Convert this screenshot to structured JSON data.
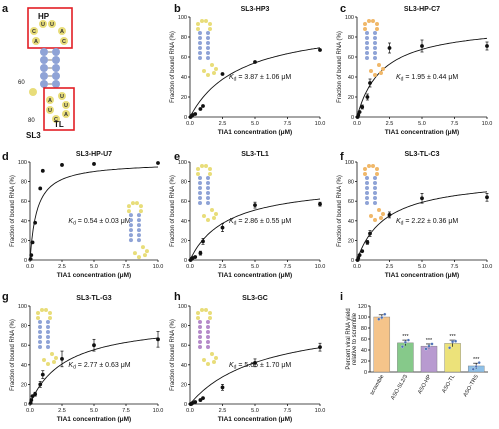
{
  "panel_a": {
    "letter": "a",
    "construct_label": "SL3",
    "hp_label": "HP",
    "tl_label": "TL",
    "pos60": "60",
    "pos80": "80",
    "upper_loop": [
      "C",
      "A",
      "U",
      "A",
      "C",
      "U",
      "A"
    ],
    "lower_loop": [
      "U",
      "U",
      "A",
      "C",
      "U",
      "A"
    ]
  },
  "colors": {
    "stem_blue": "#8fa3d6",
    "loop_yellow": "#e8dd7a",
    "loop_orange": "#f0b86a",
    "stem_purple": "#b58ac9",
    "highlight_red": "#e31e24",
    "bar_scramble": "#f5c48a",
    "bar_sl23": "#86c98a",
    "bar_hp": "#b89ad0",
    "bar_tl": "#ece27a",
    "bar_trs": "#8ec0e8"
  },
  "chart_data": [
    {
      "type": "scatter",
      "panel": "b",
      "title": "SL3-HP3",
      "xlabel": "TIA1 concentration (μM)",
      "ylabel": "Fraction of bound RNA (%)",
      "kd_prefix": "K",
      "kd_sub": "d",
      "kd_text": " = 3.87 ± 1.06 μM",
      "xlim": [
        0,
        10
      ],
      "ylim": [
        0,
        100
      ],
      "xticks": [
        "0.0",
        "2.5",
        "5.0",
        "7.5",
        "10.0"
      ],
      "yticks": [
        "0",
        "20",
        "40",
        "60",
        "80",
        "100"
      ],
      "x": [
        0.05,
        0.1,
        0.2,
        0.4,
        0.8,
        1.0,
        2.5,
        5.0,
        10.0
      ],
      "y": [
        0,
        1,
        2,
        3,
        8,
        11,
        43,
        55,
        67
      ],
      "err": [
        0,
        0,
        0,
        0,
        0,
        0,
        0,
        0,
        0
      ],
      "fit": {
        "bmax": 96,
        "kd": 3.87
      }
    },
    {
      "type": "scatter",
      "panel": "c",
      "title": "SL3-HP-C7",
      "xlabel": "TIA1 concentration (μM)",
      "ylabel": "Fraction of bound RNA (%)",
      "kd_prefix": "K",
      "kd_sub": "d",
      "kd_text": " = 1.95 ± 0.44 μM",
      "xlim": [
        0,
        10
      ],
      "ylim": [
        0,
        100
      ],
      "xticks": [
        "0.0",
        "2.5",
        "5.0",
        "7.5",
        "10.0"
      ],
      "yticks": [
        "0",
        "20",
        "40",
        "60",
        "80",
        "100"
      ],
      "x": [
        0.05,
        0.1,
        0.2,
        0.4,
        0.8,
        1.0,
        2.5,
        5.0,
        10.0
      ],
      "y": [
        0,
        2,
        5,
        10,
        20,
        34,
        69,
        71,
        71
      ],
      "err": [
        0,
        0,
        0,
        2,
        3,
        4,
        5,
        6,
        4
      ],
      "fit": {
        "bmax": 94,
        "kd": 1.95
      }
    },
    {
      "type": "scatter",
      "panel": "d",
      "title": "SL3-HP-U7",
      "xlabel": "TIA1 concentration (μM)",
      "ylabel": "Fraction of bound RNA (%)",
      "kd_prefix": "K",
      "kd_sub": "d",
      "kd_text": " = 0.54 ± 0.03 μM",
      "xlim": [
        0,
        10
      ],
      "ylim": [
        0,
        100
      ],
      "xticks": [
        "0.0",
        "2.5",
        "5.0",
        "7.5",
        "10.0"
      ],
      "yticks": [
        "0",
        "20",
        "40",
        "60",
        "80",
        "100"
      ],
      "x": [
        0.05,
        0.1,
        0.2,
        0.4,
        0.8,
        1.0,
        2.5,
        5.0,
        10.0
      ],
      "y": [
        1,
        5,
        18,
        38,
        73,
        91,
        97,
        98,
        99
      ],
      "err": [
        0,
        0,
        0,
        0,
        0,
        0,
        0,
        0,
        0
      ],
      "fit": {
        "bmax": 100,
        "kd": 0.54
      }
    },
    {
      "type": "scatter",
      "panel": "e",
      "title": "SL3-TL1",
      "xlabel": "TIA1 concentration (μM)",
      "ylabel": "Fraction of bound RNA (%)",
      "kd_prefix": "K",
      "kd_sub": "d",
      "kd_text": " = 2.86 ± 0.55 μM",
      "xlim": [
        0,
        10
      ],
      "ylim": [
        0,
        100
      ],
      "xticks": [
        "0.0",
        "2.5",
        "5.0",
        "7.5",
        "10.0"
      ],
      "yticks": [
        "0",
        "20",
        "40",
        "60",
        "80",
        "100"
      ],
      "x": [
        0.05,
        0.1,
        0.2,
        0.4,
        0.8,
        1.0,
        2.5,
        5.0,
        10.0
      ],
      "y": [
        0,
        1,
        2,
        3,
        7,
        19,
        33,
        56,
        57
      ],
      "err": [
        0,
        0,
        0,
        0,
        2,
        3,
        4,
        3,
        2
      ],
      "fit": {
        "bmax": 80,
        "kd": 2.86
      }
    },
    {
      "type": "scatter",
      "panel": "f",
      "title": "SL3-TL-C3",
      "xlabel": "TIA1 concentration (μM)",
      "ylabel": "Fraction of bound RNA (%)",
      "kd_prefix": "K",
      "kd_sub": "d",
      "kd_text": " = 2.22 ± 0.36 μM",
      "xlim": [
        0,
        10
      ],
      "ylim": [
        0,
        100
      ],
      "xticks": [
        "0.0",
        "2.5",
        "5.0",
        "7.5",
        "10.0"
      ],
      "yticks": [
        "0",
        "20",
        "40",
        "60",
        "80",
        "100"
      ],
      "x": [
        0.05,
        0.1,
        0.2,
        0.4,
        0.8,
        1.0,
        2.5,
        5.0,
        10.0
      ],
      "y": [
        0,
        2,
        5,
        9,
        18,
        27,
        46,
        63,
        64
      ],
      "err": [
        0,
        0,
        0,
        0,
        2,
        3,
        3,
        5,
        4
      ],
      "fit": {
        "bmax": 85,
        "kd": 2.22
      }
    },
    {
      "type": "scatter",
      "panel": "g",
      "title": "SL3-TL-G3",
      "xlabel": "TIA1 concentration (μM)",
      "ylabel": "Fraction of bound RNA (%)",
      "kd_prefix": "K",
      "kd_sub": "d",
      "kd_text": " = 2.77 ± 0.63 μM",
      "xlim": [
        0,
        10
      ],
      "ylim": [
        0,
        100
      ],
      "xticks": [
        "0.0",
        "2.5",
        "5.0",
        "7.5",
        "10.0"
      ],
      "yticks": [
        "0",
        "20",
        "40",
        "60",
        "80",
        "100"
      ],
      "x": [
        0.05,
        0.1,
        0.2,
        0.4,
        0.8,
        1.0,
        2.5,
        5.0,
        10.0
      ],
      "y": [
        1,
        4,
        8,
        10,
        20,
        30,
        46,
        60,
        66
      ],
      "err": [
        0,
        0,
        0,
        2,
        3,
        4,
        8,
        6,
        8
      ],
      "fit": {
        "bmax": 86,
        "kd": 2.77
      }
    },
    {
      "type": "scatter",
      "panel": "h",
      "title": "SL3-GC",
      "xlabel": "TIA1 concentration (μM)",
      "ylabel": "Fraction of bound RNA (%)",
      "kd_prefix": "K",
      "kd_sub": "d",
      "kd_text": " = 5.65 ± 1.70 μM",
      "xlim": [
        0,
        10
      ],
      "ylim": [
        0,
        100
      ],
      "xticks": [
        "0.0",
        "2.5",
        "5.0",
        "7.5",
        "10.0"
      ],
      "yticks": [
        "0",
        "20",
        "40",
        "60",
        "80",
        "100"
      ],
      "x": [
        0.05,
        0.1,
        0.2,
        0.4,
        0.8,
        1.0,
        2.5,
        5.0,
        10.0
      ],
      "y": [
        0,
        0,
        1,
        2,
        4,
        6,
        17,
        42,
        58
      ],
      "err": [
        0,
        0,
        0,
        0,
        0,
        0,
        3,
        4,
        4
      ],
      "fit": {
        "bmax": 90,
        "kd": 5.65
      }
    },
    {
      "type": "bar",
      "panel": "i",
      "ylabel_line1": "Percent viral RNA yield",
      "ylabel_line2": "relative to scramble",
      "ylim": [
        0,
        120
      ],
      "yticks": [
        "0",
        "20",
        "40",
        "60",
        "80",
        "100",
        "120"
      ],
      "categories": [
        "scramble",
        "ASO-SL2/3",
        "ASO-HP",
        "ASO-TL",
        "ASO-TRS"
      ],
      "values": [
        100,
        53,
        47,
        52,
        11
      ],
      "errors": [
        4,
        5,
        4,
        6,
        5
      ],
      "points": [
        [
          96,
          99,
          105
        ],
        [
          46,
          54,
          58
        ],
        [
          42,
          47,
          51
        ],
        [
          44,
          55,
          56
        ],
        [
          5,
          10,
          17
        ]
      ],
      "significance": [
        "",
        "***",
        "***",
        "***",
        "***"
      ]
    }
  ]
}
